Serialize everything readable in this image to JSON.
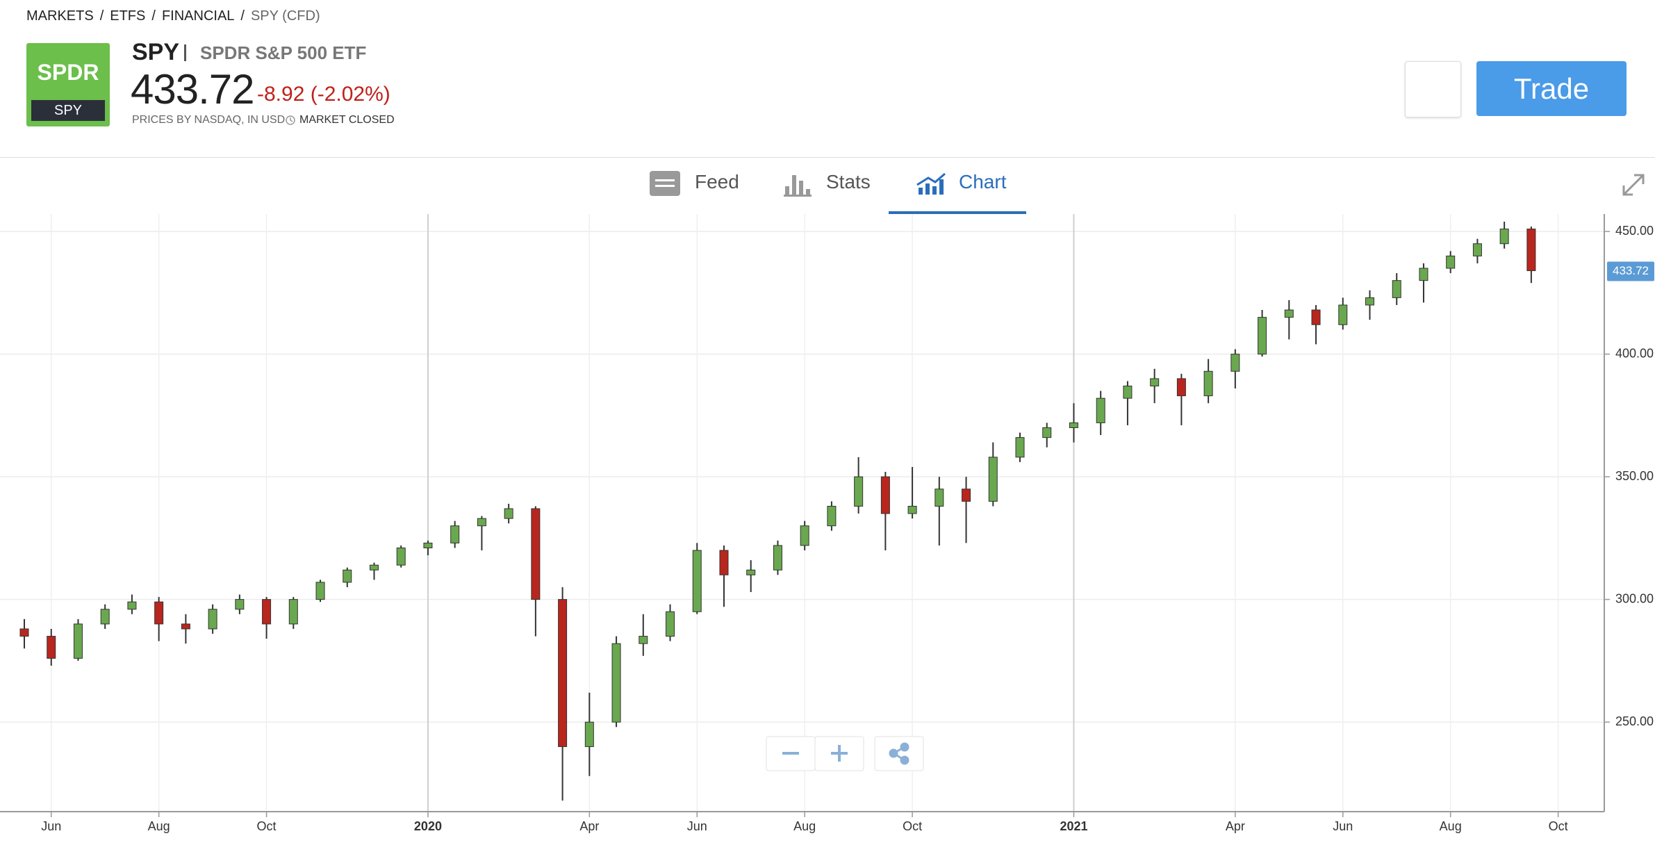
{
  "breadcrumb": [
    "MARKETS",
    "ETFS",
    "FINANCIAL",
    "SPY (CFD)"
  ],
  "logo": {
    "brand": "SPDR",
    "ticker": "SPY"
  },
  "header": {
    "symbol": "SPY",
    "name": "SPDR S&P 500 ETF",
    "price": "433.72",
    "change": "-8.92 (-2.02%)",
    "source": "PRICES BY NASDAQ, IN USD",
    "status": "MARKET CLOSED",
    "trade_button": "Trade"
  },
  "tabs": [
    "Feed",
    "Stats",
    "Chart"
  ],
  "chart_data": {
    "type": "candlestick",
    "categories": [
      null,
      "Jun",
      null,
      null,
      null,
      "Aug",
      null,
      null,
      null,
      "Oct",
      null,
      null,
      null,
      null,
      null,
      "2020",
      null,
      null,
      null,
      null,
      null,
      "Apr",
      null,
      null,
      null,
      "Jun",
      null,
      null,
      null,
      "Aug",
      null,
      null,
      null,
      "Oct",
      null,
      null,
      null,
      null,
      null,
      "2021",
      null,
      null,
      null,
      null,
      null,
      "Apr",
      null,
      null,
      null,
      "Jun",
      null,
      null,
      null,
      "Aug",
      null,
      null,
      null,
      "Oct"
    ],
    "open": [
      288,
      285,
      276,
      290,
      296,
      299,
      290,
      288,
      296,
      300,
      290,
      300,
      307,
      312,
      314,
      321,
      323,
      330,
      333,
      337,
      300,
      240,
      250,
      282,
      285,
      295,
      320,
      310,
      312,
      322,
      330,
      338,
      350,
      335,
      338,
      345,
      340,
      358,
      366,
      370,
      372,
      382,
      387,
      390,
      383,
      393,
      400,
      415,
      418,
      412,
      420,
      423,
      430,
      435,
      440,
      445,
      451,
      null
    ],
    "high": [
      292,
      288,
      292,
      298,
      302,
      301,
      294,
      298,
      302,
      301,
      301,
      308,
      313,
      315,
      322,
      324,
      332,
      334,
      339,
      338,
      305,
      262,
      285,
      294,
      298,
      323,
      322,
      316,
      324,
      332,
      340,
      358,
      352,
      354,
      350,
      350,
      364,
      368,
      372,
      380,
      385,
      389,
      394,
      392,
      398,
      402,
      418,
      422,
      420,
      423,
      426,
      433,
      437,
      442,
      447,
      454,
      452,
      null
    ],
    "low": [
      280,
      273,
      275,
      288,
      294,
      283,
      282,
      286,
      294,
      284,
      288,
      299,
      305,
      308,
      313,
      318,
      321,
      320,
      331,
      285,
      218,
      228,
      248,
      277,
      283,
      294,
      297,
      303,
      310,
      320,
      328,
      335,
      320,
      333,
      322,
      323,
      338,
      356,
      362,
      364,
      367,
      371,
      380,
      371,
      380,
      386,
      399,
      406,
      404,
      410,
      414,
      420,
      421,
      433,
      437,
      443,
      429,
      null
    ],
    "close": [
      285,
      276,
      290,
      296,
      299,
      290,
      288,
      296,
      300,
      290,
      300,
      307,
      312,
      314,
      321,
      323,
      330,
      333,
      337,
      300,
      240,
      250,
      282,
      285,
      295,
      320,
      310,
      312,
      322,
      330,
      338,
      350,
      335,
      338,
      345,
      340,
      358,
      366,
      370,
      372,
      382,
      387,
      390,
      383,
      393,
      400,
      415,
      418,
      412,
      420,
      423,
      430,
      435,
      440,
      445,
      451,
      434,
      null
    ],
    "up_color": "#6aa84f",
    "down_color": "#b8261e",
    "ylim": [
      213.5,
      457.1
    ],
    "yticks": [
      {
        "value": 250,
        "label": "250.00"
      },
      {
        "value": 300,
        "label": "300.00"
      },
      {
        "value": 350,
        "label": "350.00"
      },
      {
        "value": 400,
        "label": "400.00"
      },
      {
        "value": 450,
        "label": "450.00"
      }
    ],
    "last_price": 433.72,
    "grid": true
  }
}
